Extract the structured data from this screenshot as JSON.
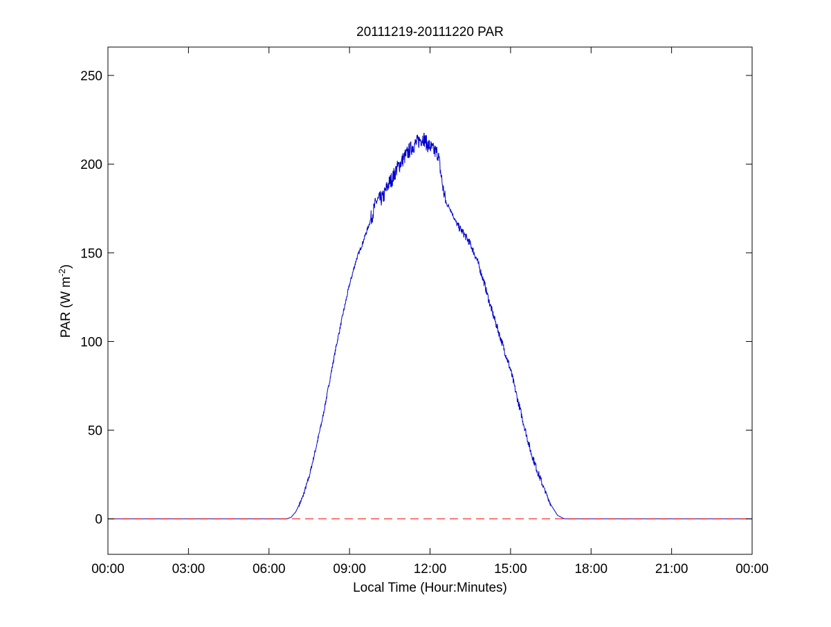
{
  "chart_data": {
    "type": "line",
    "title": "20111219-20111220 PAR",
    "xlabel": "Local Time (Hour:Minutes)",
    "ylabel_main": "PAR (W m",
    "ylabel_sup": "-2",
    "ylabel_close": ")",
    "x_unit": "hours",
    "xlim": [
      0,
      24
    ],
    "ylim": [
      -20,
      266
    ],
    "x_ticks": [
      {
        "value": 0,
        "label": "00:00"
      },
      {
        "value": 3,
        "label": "03:00"
      },
      {
        "value": 6,
        "label": "06:00"
      },
      {
        "value": 9,
        "label": "09:00"
      },
      {
        "value": 12,
        "label": "12:00"
      },
      {
        "value": 15,
        "label": "15:00"
      },
      {
        "value": 18,
        "label": "18:00"
      },
      {
        "value": 21,
        "label": "21:00"
      },
      {
        "value": 24,
        "label": "00:00"
      }
    ],
    "y_ticks": [
      {
        "value": 0,
        "label": "0"
      },
      {
        "value": 50,
        "label": "50"
      },
      {
        "value": 100,
        "label": "100"
      },
      {
        "value": 150,
        "label": "150"
      },
      {
        "value": 200,
        "label": "200"
      },
      {
        "value": 250,
        "label": "250"
      }
    ],
    "grid": false,
    "series": [
      {
        "color": "#0000cc",
        "style": "solid",
        "x": [
          0,
          6.0,
          6.67,
          6.83,
          7.0,
          7.25,
          7.5,
          7.75,
          8.0,
          8.25,
          8.5,
          8.75,
          9.0,
          9.25,
          9.5,
          9.75,
          9.9,
          10.0,
          10.25,
          10.4,
          10.5,
          10.6,
          10.75,
          11.0,
          11.2,
          11.35,
          11.5,
          11.65,
          11.75,
          11.9,
          12.0,
          12.1,
          12.2,
          12.3,
          12.4,
          12.5,
          12.6,
          12.75,
          13.0,
          13.25,
          13.5,
          13.75,
          14.0,
          14.25,
          14.5,
          14.75,
          15.0,
          15.25,
          15.5,
          15.6,
          15.75,
          16.0,
          16.25,
          16.5,
          16.75,
          17.0,
          17.2,
          18.0,
          21.0,
          24.0
        ],
        "y": [
          0,
          0,
          0,
          1,
          4,
          12,
          24,
          40,
          57,
          77,
          97,
          115,
          132,
          146,
          156,
          167,
          174,
          179,
          181,
          187,
          190,
          192,
          197,
          203,
          207,
          210,
          212,
          214,
          215,
          211,
          210,
          208,
          207,
          206,
          195,
          185,
          178,
          175,
          166,
          161,
          155,
          146,
          134,
          120,
          108,
          96,
          84,
          68,
          53,
          47,
          38,
          27,
          17,
          8,
          2,
          0,
          0,
          0,
          0,
          0
        ]
      },
      {
        "color": "#ff0000",
        "style": "dashed",
        "x": [
          0,
          24
        ],
        "y": [
          0,
          0
        ]
      }
    ]
  }
}
